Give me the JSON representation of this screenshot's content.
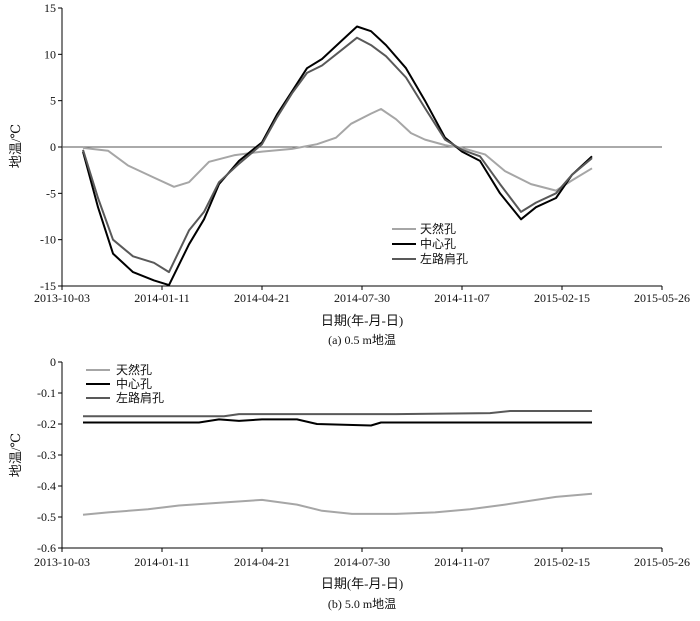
{
  "chart_data": [
    {
      "type": "line",
      "caption": "(a) 0.5 m地温",
      "xlabel": "日期(年-月-日)",
      "ylabel": "地温/℃",
      "x_ticks": [
        "2013-10-03",
        "2014-01-11",
        "2014-04-21",
        "2014-07-30",
        "2014-11-07",
        "2015-02-15",
        "2015-05-26"
      ],
      "y_ticks": [
        "-15",
        "-10",
        "-5",
        "0",
        "5",
        "10",
        "15"
      ],
      "xlim": [
        "2013-10-03",
        "2015-05-26"
      ],
      "ylim": [
        -15,
        15
      ],
      "legend": [
        "天然孔",
        "中心孔",
        "左路肩孔"
      ],
      "legend_position": "center",
      "zero_line": true,
      "series": [
        {
          "name": "天然孔",
          "color": "#a6a6a6",
          "x": [
            "2013-10-24",
            "2013-11-18",
            "2013-12-08",
            "2014-01-03",
            "2014-01-23",
            "2014-02-07",
            "2014-02-27",
            "2014-03-24",
            "2014-04-21",
            "2014-05-21",
            "2014-06-15",
            "2014-07-04",
            "2014-07-19",
            "2014-08-08",
            "2014-08-18",
            "2014-09-02",
            "2014-09-17",
            "2014-10-01",
            "2014-10-21",
            "2014-11-07",
            "2014-11-30",
            "2014-12-20",
            "2015-01-15",
            "2015-02-09",
            "2015-02-25",
            "2015-03-17"
          ],
          "y": [
            -0.1,
            -0.4,
            -2.0,
            -3.3,
            -4.3,
            -3.8,
            -1.6,
            -0.9,
            -0.5,
            -0.2,
            0.3,
            1.0,
            2.5,
            3.6,
            4.1,
            3.0,
            1.5,
            0.8,
            0.2,
            -0.1,
            -0.8,
            -2.6,
            -4.0,
            -4.7,
            -3.6,
            -2.3
          ]
        },
        {
          "name": "中心孔",
          "color": "#000000",
          "x": [
            "2013-10-24",
            "2013-11-08",
            "2013-11-23",
            "2013-12-13",
            "2014-01-03",
            "2014-01-18",
            "2014-02-07",
            "2014-02-22",
            "2014-03-09",
            "2014-03-29",
            "2014-04-21",
            "2014-05-06",
            "2014-05-21",
            "2014-06-05",
            "2014-06-20",
            "2014-07-10",
            "2014-07-25",
            "2014-08-08",
            "2014-08-23",
            "2014-09-12",
            "2014-10-01",
            "2014-10-21",
            "2014-11-07",
            "2014-11-25",
            "2014-12-15",
            "2015-01-05",
            "2015-01-20",
            "2015-02-09",
            "2015-02-25",
            "2015-03-17"
          ],
          "y": [
            -0.5,
            -6.5,
            -11.5,
            -13.5,
            -14.4,
            -14.9,
            -10.5,
            -7.8,
            -4.0,
            -1.5,
            0.5,
            3.5,
            6.0,
            8.5,
            9.5,
            11.5,
            13.0,
            12.5,
            11.0,
            8.5,
            5.0,
            1.0,
            -0.5,
            -1.5,
            -5.0,
            -7.8,
            -6.5,
            -5.5,
            -3.0,
            -1.0
          ]
        },
        {
          "name": "左路肩孔",
          "color": "#595959",
          "x": [
            "2013-10-24",
            "2013-11-08",
            "2013-11-23",
            "2013-12-13",
            "2014-01-03",
            "2014-01-18",
            "2014-02-07",
            "2014-02-22",
            "2014-03-09",
            "2014-03-29",
            "2014-04-21",
            "2014-05-06",
            "2014-05-21",
            "2014-06-05",
            "2014-06-20",
            "2014-07-10",
            "2014-07-25",
            "2014-08-08",
            "2014-08-23",
            "2014-09-12",
            "2014-10-01",
            "2014-10-21",
            "2014-11-07",
            "2014-11-25",
            "2014-12-15",
            "2015-01-05",
            "2015-01-20",
            "2015-02-09",
            "2015-02-25",
            "2015-03-17"
          ],
          "y": [
            -0.3,
            -5.5,
            -10.0,
            -11.8,
            -12.5,
            -13.5,
            -9.0,
            -7.0,
            -3.8,
            -1.8,
            0.3,
            3.2,
            5.8,
            8.0,
            8.8,
            10.5,
            11.8,
            11.0,
            9.8,
            7.5,
            4.2,
            0.8,
            -0.3,
            -1.0,
            -4.0,
            -7.0,
            -6.0,
            -5.0,
            -3.0,
            -1.2
          ]
        }
      ]
    },
    {
      "type": "line",
      "caption": "(b) 5.0 m地温",
      "xlabel": "日期(年-月-日)",
      "ylabel": "地温/℃",
      "x_ticks": [
        "2013-10-03",
        "2014-01-11",
        "2014-04-21",
        "2014-07-30",
        "2014-11-07",
        "2015-02-15",
        "2015-05-26"
      ],
      "y_ticks": [
        "0",
        "-0.1",
        "-0.2",
        "-0.3",
        "-0.4",
        "-0.5",
        "-0.6"
      ],
      "xlim": [
        "2013-10-03",
        "2015-05-26"
      ],
      "ylim": [
        -0.6,
        0
      ],
      "legend": [
        "天然孔",
        "中心孔",
        "左路肩孔"
      ],
      "legend_position": "top-left",
      "series": [
        {
          "name": "天然孔",
          "color": "#a6a6a6",
          "x": [
            "2013-10-24",
            "2013-11-18",
            "2013-12-28",
            "2014-01-28",
            "2014-03-04",
            "2014-04-21",
            "2014-05-26",
            "2014-06-20",
            "2014-07-20",
            "2014-09-02",
            "2014-10-11",
            "2014-11-15",
            "2014-12-20",
            "2015-01-20",
            "2015-02-09",
            "2015-03-17"
          ],
          "y": [
            -0.493,
            -0.485,
            -0.475,
            -0.463,
            -0.455,
            -0.445,
            -0.46,
            -0.48,
            -0.49,
            -0.49,
            -0.485,
            -0.475,
            -0.46,
            -0.445,
            -0.435,
            -0.425
          ]
        },
        {
          "name": "中心孔",
          "color": "#000000",
          "x": [
            "2013-10-24",
            "2014-02-17",
            "2014-03-09",
            "2014-03-29",
            "2014-04-21",
            "2014-05-26",
            "2014-06-15",
            "2014-08-08",
            "2014-08-18",
            "2014-09-12",
            "2015-03-17"
          ],
          "y": [
            -0.195,
            -0.195,
            -0.185,
            -0.19,
            -0.185,
            -0.185,
            -0.2,
            -0.205,
            -0.195,
            -0.195,
            -0.195
          ]
        },
        {
          "name": "左路肩孔",
          "color": "#595959",
          "x": [
            "2013-10-24",
            "2014-03-14",
            "2014-03-29",
            "2014-09-02",
            "2014-12-05",
            "2014-12-25",
            "2015-03-17"
          ],
          "y": [
            -0.175,
            -0.175,
            -0.168,
            -0.168,
            -0.165,
            -0.158,
            -0.158
          ]
        }
      ]
    }
  ]
}
